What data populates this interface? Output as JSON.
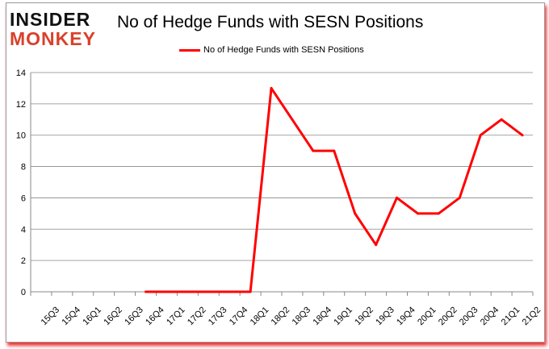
{
  "logo": {
    "line1": "INSIDER",
    "line2": "MONKEY"
  },
  "chart_data": {
    "type": "line",
    "title": "No of Hedge Funds with SESN Positions",
    "xlabel": "",
    "ylabel": "",
    "ylim": [
      0,
      14
    ],
    "yticks": [
      0,
      2,
      4,
      6,
      8,
      10,
      12,
      14
    ],
    "grid": true,
    "legend_position": "top-center",
    "categories": [
      "15Q3",
      "15Q4",
      "16Q1",
      "16Q2",
      "16Q3",
      "16Q4",
      "17Q1",
      "17Q2",
      "17Q3",
      "17Q4",
      "18Q1",
      "18Q2",
      "18Q3",
      "18Q4",
      "19Q1",
      "19Q2",
      "19Q3",
      "19Q4",
      "20Q1",
      "20Q2",
      "20Q3",
      "20Q4",
      "21Q1",
      "21Q2"
    ],
    "series": [
      {
        "name": "No of Hedge Funds with SESN Positions",
        "color": "#ff0000",
        "values": [
          null,
          null,
          null,
          null,
          null,
          0,
          0,
          0,
          0,
          0,
          0,
          13,
          11,
          9,
          9,
          5,
          3,
          6,
          5,
          5,
          6,
          10,
          11,
          10
        ]
      }
    ]
  }
}
